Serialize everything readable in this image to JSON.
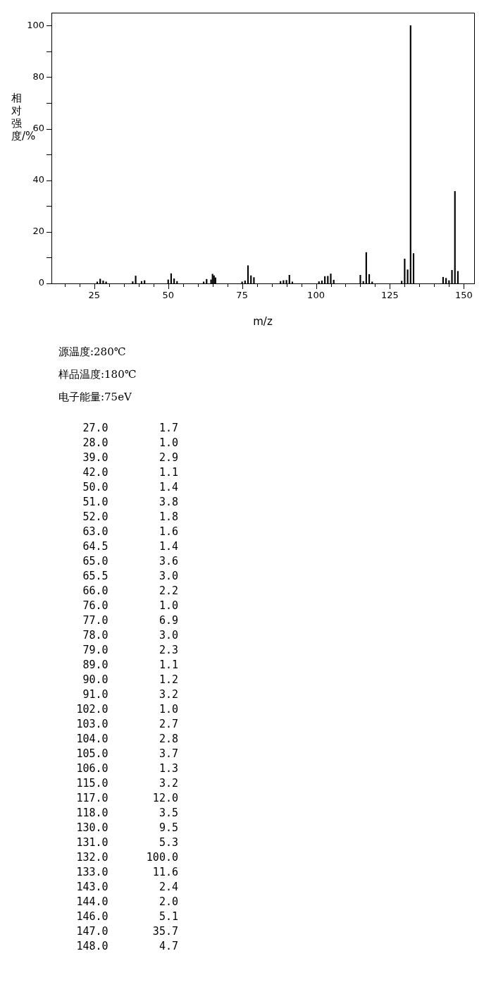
{
  "chart_data": {
    "type": "bar",
    "xlabel": "m/z",
    "ylabel": "相对强度/%",
    "x": [
      26,
      27,
      28,
      29,
      38,
      39,
      41,
      42,
      50,
      51,
      52,
      53,
      62,
      63,
      64.5,
      65,
      65.5,
      66,
      75,
      76,
      77,
      78,
      79,
      88,
      89,
      90,
      91,
      92,
      101,
      102,
      103,
      104,
      105,
      106,
      115,
      116,
      117,
      118,
      119,
      129,
      130,
      131,
      132,
      133,
      143,
      144,
      145,
      146,
      147,
      148
    ],
    "values": [
      0.6,
      1.7,
      1.0,
      0.6,
      0.7,
      2.9,
      0.8,
      1.1,
      1.4,
      3.8,
      1.8,
      0.8,
      0.6,
      1.6,
      1.4,
      3.6,
      3.0,
      2.2,
      0.6,
      1.0,
      6.9,
      3.0,
      2.3,
      0.8,
      1.1,
      1.2,
      3.2,
      0.6,
      0.7,
      1.0,
      2.7,
      2.8,
      3.7,
      1.3,
      3.2,
      0.8,
      12.0,
      3.5,
      0.6,
      0.9,
      9.5,
      5.3,
      100.0,
      11.6,
      2.4,
      2.0,
      1.1,
      5.1,
      35.7,
      4.7
    ],
    "color": "#000000",
    "xlim": [
      10.5,
      153.5
    ],
    "xticks": [
      {
        "value": 15,
        "label": null
      },
      {
        "value": 20,
        "label": null
      },
      25,
      {
        "value": 30,
        "label": null
      },
      {
        "value": 35,
        "label": null
      },
      {
        "value": 40,
        "label": null
      },
      {
        "value": 45,
        "label": null
      },
      50,
      {
        "value": 55,
        "label": null
      },
      {
        "value": 60,
        "label": null
      },
      {
        "value": 65,
        "label": null
      },
      {
        "value": 70,
        "label": null
      },
      75,
      {
        "value": 80,
        "label": null
      },
      {
        "value": 85,
        "label": null
      },
      {
        "value": 90,
        "label": null
      },
      {
        "value": 95,
        "label": null
      },
      100,
      {
        "value": 105,
        "label": null
      },
      {
        "value": 110,
        "label": null
      },
      {
        "value": 115,
        "label": null
      },
      {
        "value": 120,
        "label": null
      },
      125,
      {
        "value": 130,
        "label": null
      },
      {
        "value": 135,
        "label": null
      },
      {
        "value": 140,
        "label": null
      },
      {
        "value": 145,
        "label": null
      },
      150
    ],
    "ylim": [
      0,
      105
    ],
    "yticks": [
      0,
      {
        "value": 10,
        "label": null
      },
      20,
      {
        "value": 30,
        "label": null
      },
      40,
      {
        "value": 50,
        "label": null
      },
      60,
      {
        "value": 70,
        "label": null
      },
      80,
      {
        "value": 90,
        "label": null
      },
      100
    ],
    "grid": false,
    "legend": false,
    "annotations": [
      "源温度:280℃",
      "样品温度:180℃",
      "电子能量:75eV",
      "27.0        1.7",
      "28.0        1.0",
      "39.0        2.9",
      "42.0        1.1",
      "50.0        1.4",
      "51.0        3.8",
      "52.0        1.8",
      "63.0        1.6",
      "64.5        1.4",
      "65.0        3.6",
      "65.5        3.0",
      "66.0        2.2",
      "76.0        1.0",
      "77.0        6.9",
      "78.0        3.0",
      "79.0        2.3",
      "89.0        1.1",
      "90.0        1.2",
      "91.0        3.2",
      "102.0        1.0",
      "103.0        2.7",
      "104.0        2.8",
      "105.0        3.7",
      "106.0        1.3",
      "115.0        3.2",
      "117.0       12.0",
      "118.0        3.5",
      "130.0        9.5",
      "131.0        5.3",
      "132.0      100.0",
      "133.0       11.6",
      "143.0        2.4",
      "144.0        2.0",
      "146.0        5.1",
      "147.0       35.7",
      "148.0        4.7"
    ]
  }
}
